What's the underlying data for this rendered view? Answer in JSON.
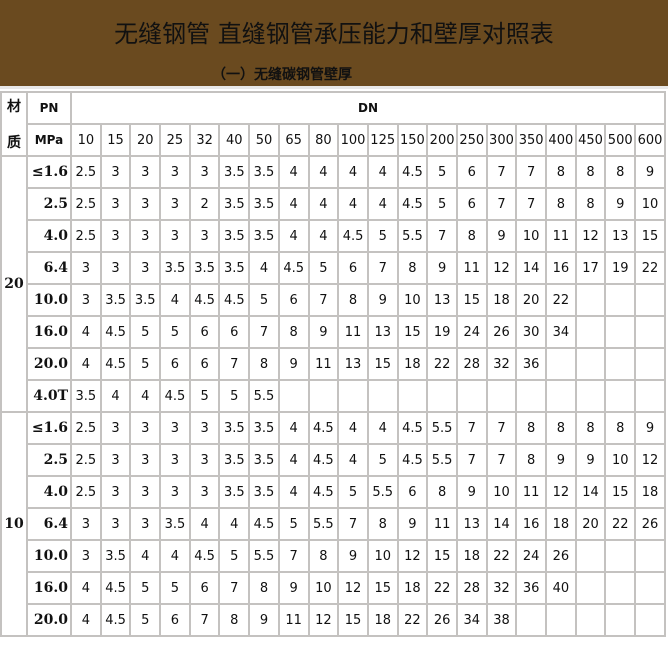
{
  "header": {
    "title": "无缝钢管 直缝钢管承压能力和壁厚对照表",
    "subtitle": "（一）无缝碳钢管壁厚",
    "background": "#6a4a1f"
  },
  "table": {
    "material_label": "材质",
    "material_label_lines": [
      "材",
      "质"
    ],
    "pn_label": "PN",
    "unit_label": "MPa",
    "dn_label": "DN",
    "dn": [
      "10",
      "15",
      "20",
      "25",
      "32",
      "40",
      "50",
      "65",
      "80",
      "100",
      "125",
      "150",
      "200",
      "250",
      "300",
      "350",
      "400",
      "450",
      "500",
      "600"
    ],
    "groups": [
      {
        "material": "20",
        "rows": [
          {
            "pn": "≤1.6",
            "values": [
              "2.5",
              "3",
              "3",
              "3",
              "3",
              "3.5",
              "3.5",
              "4",
              "4",
              "4",
              "4",
              "4.5",
              "5",
              "6",
              "7",
              "7",
              "8",
              "8",
              "8",
              "9"
            ]
          },
          {
            "pn": "2.5",
            "values": [
              "2.5",
              "3",
              "3",
              "3",
              "2",
              "3.5",
              "3.5",
              "4",
              "4",
              "4",
              "4",
              "4.5",
              "5",
              "6",
              "7",
              "7",
              "8",
              "8",
              "9",
              "10"
            ]
          },
          {
            "pn": "4.0",
            "values": [
              "2.5",
              "3",
              "3",
              "3",
              "3",
              "3.5",
              "3.5",
              "4",
              "4",
              "4.5",
              "5",
              "5.5",
              "7",
              "8",
              "9",
              "10",
              "11",
              "12",
              "13",
              "15"
            ]
          },
          {
            "pn": "6.4",
            "values": [
              "3",
              "3",
              "3",
              "3.5",
              "3.5",
              "3.5",
              "4",
              "4.5",
              "5",
              "6",
              "7",
              "8",
              "9",
              "11",
              "12",
              "14",
              "16",
              "17",
              "19",
              "22"
            ]
          },
          {
            "pn": "10.0",
            "values": [
              "3",
              "3.5",
              "3.5",
              "4",
              "4.5",
              "4.5",
              "5",
              "6",
              "7",
              "8",
              "9",
              "10",
              "13",
              "15",
              "18",
              "20",
              "22",
              "",
              "",
              ""
            ]
          },
          {
            "pn": "16.0",
            "values": [
              "4",
              "4.5",
              "5",
              "5",
              "6",
              "6",
              "7",
              "8",
              "9",
              "11",
              "13",
              "15",
              "19",
              "24",
              "26",
              "30",
              "34",
              "",
              "",
              ""
            ]
          },
          {
            "pn": "20.0",
            "values": [
              "4",
              "4.5",
              "5",
              "6",
              "6",
              "7",
              "8",
              "9",
              "11",
              "13",
              "15",
              "18",
              "22",
              "28",
              "32",
              "36",
              "",
              "",
              "",
              ""
            ]
          },
          {
            "pn": "4.0T",
            "values": [
              "3.5",
              "4",
              "4",
              "4.5",
              "5",
              "5",
              "5.5",
              "",
              "",
              "",
              "",
              "",
              "",
              "",
              "",
              "",
              "",
              "",
              "",
              ""
            ]
          }
        ]
      },
      {
        "material": "10",
        "rows": [
          {
            "pn": "≤1.6",
            "values": [
              "2.5",
              "3",
              "3",
              "3",
              "3",
              "3.5",
              "3.5",
              "4",
              "4.5",
              "4",
              "4",
              "4.5",
              "5.5",
              "7",
              "7",
              "8",
              "8",
              "8",
              "8",
              "9"
            ]
          },
          {
            "pn": "2.5",
            "values": [
              "2.5",
              "3",
              "3",
              "3",
              "3",
              "3.5",
              "3.5",
              "4",
              "4.5",
              "4",
              "5",
              "4.5",
              "5.5",
              "7",
              "7",
              "8",
              "9",
              "9",
              "10",
              "12"
            ]
          },
          {
            "pn": "4.0",
            "values": [
              "2.5",
              "3",
              "3",
              "3",
              "3",
              "3.5",
              "3.5",
              "4",
              "4.5",
              "5",
              "5.5",
              "6",
              "8",
              "9",
              "10",
              "11",
              "12",
              "14",
              "15",
              "18"
            ]
          },
          {
            "pn": "6.4",
            "values": [
              "3",
              "3",
              "3",
              "3.5",
              "4",
              "4",
              "4.5",
              "5",
              "5.5",
              "7",
              "8",
              "9",
              "11",
              "13",
              "14",
              "16",
              "18",
              "20",
              "22",
              "26"
            ]
          },
          {
            "pn": "10.0",
            "values": [
              "3",
              "3.5",
              "4",
              "4",
              "4.5",
              "5",
              "5.5",
              "7",
              "8",
              "9",
              "10",
              "12",
              "15",
              "18",
              "22",
              "24",
              "26",
              "",
              "",
              ""
            ]
          },
          {
            "pn": "16.0",
            "values": [
              "4",
              "4.5",
              "5",
              "5",
              "6",
              "7",
              "8",
              "9",
              "10",
              "12",
              "15",
              "18",
              "22",
              "28",
              "32",
              "36",
              "40",
              "",
              "",
              ""
            ]
          },
          {
            "pn": "20.0",
            "values": [
              "4",
              "4.5",
              "5",
              "6",
              "7",
              "8",
              "9",
              "11",
              "12",
              "15",
              "18",
              "22",
              "26",
              "34",
              "38",
              "",
              "",
              "",
              "",
              ""
            ]
          }
        ]
      }
    ]
  }
}
